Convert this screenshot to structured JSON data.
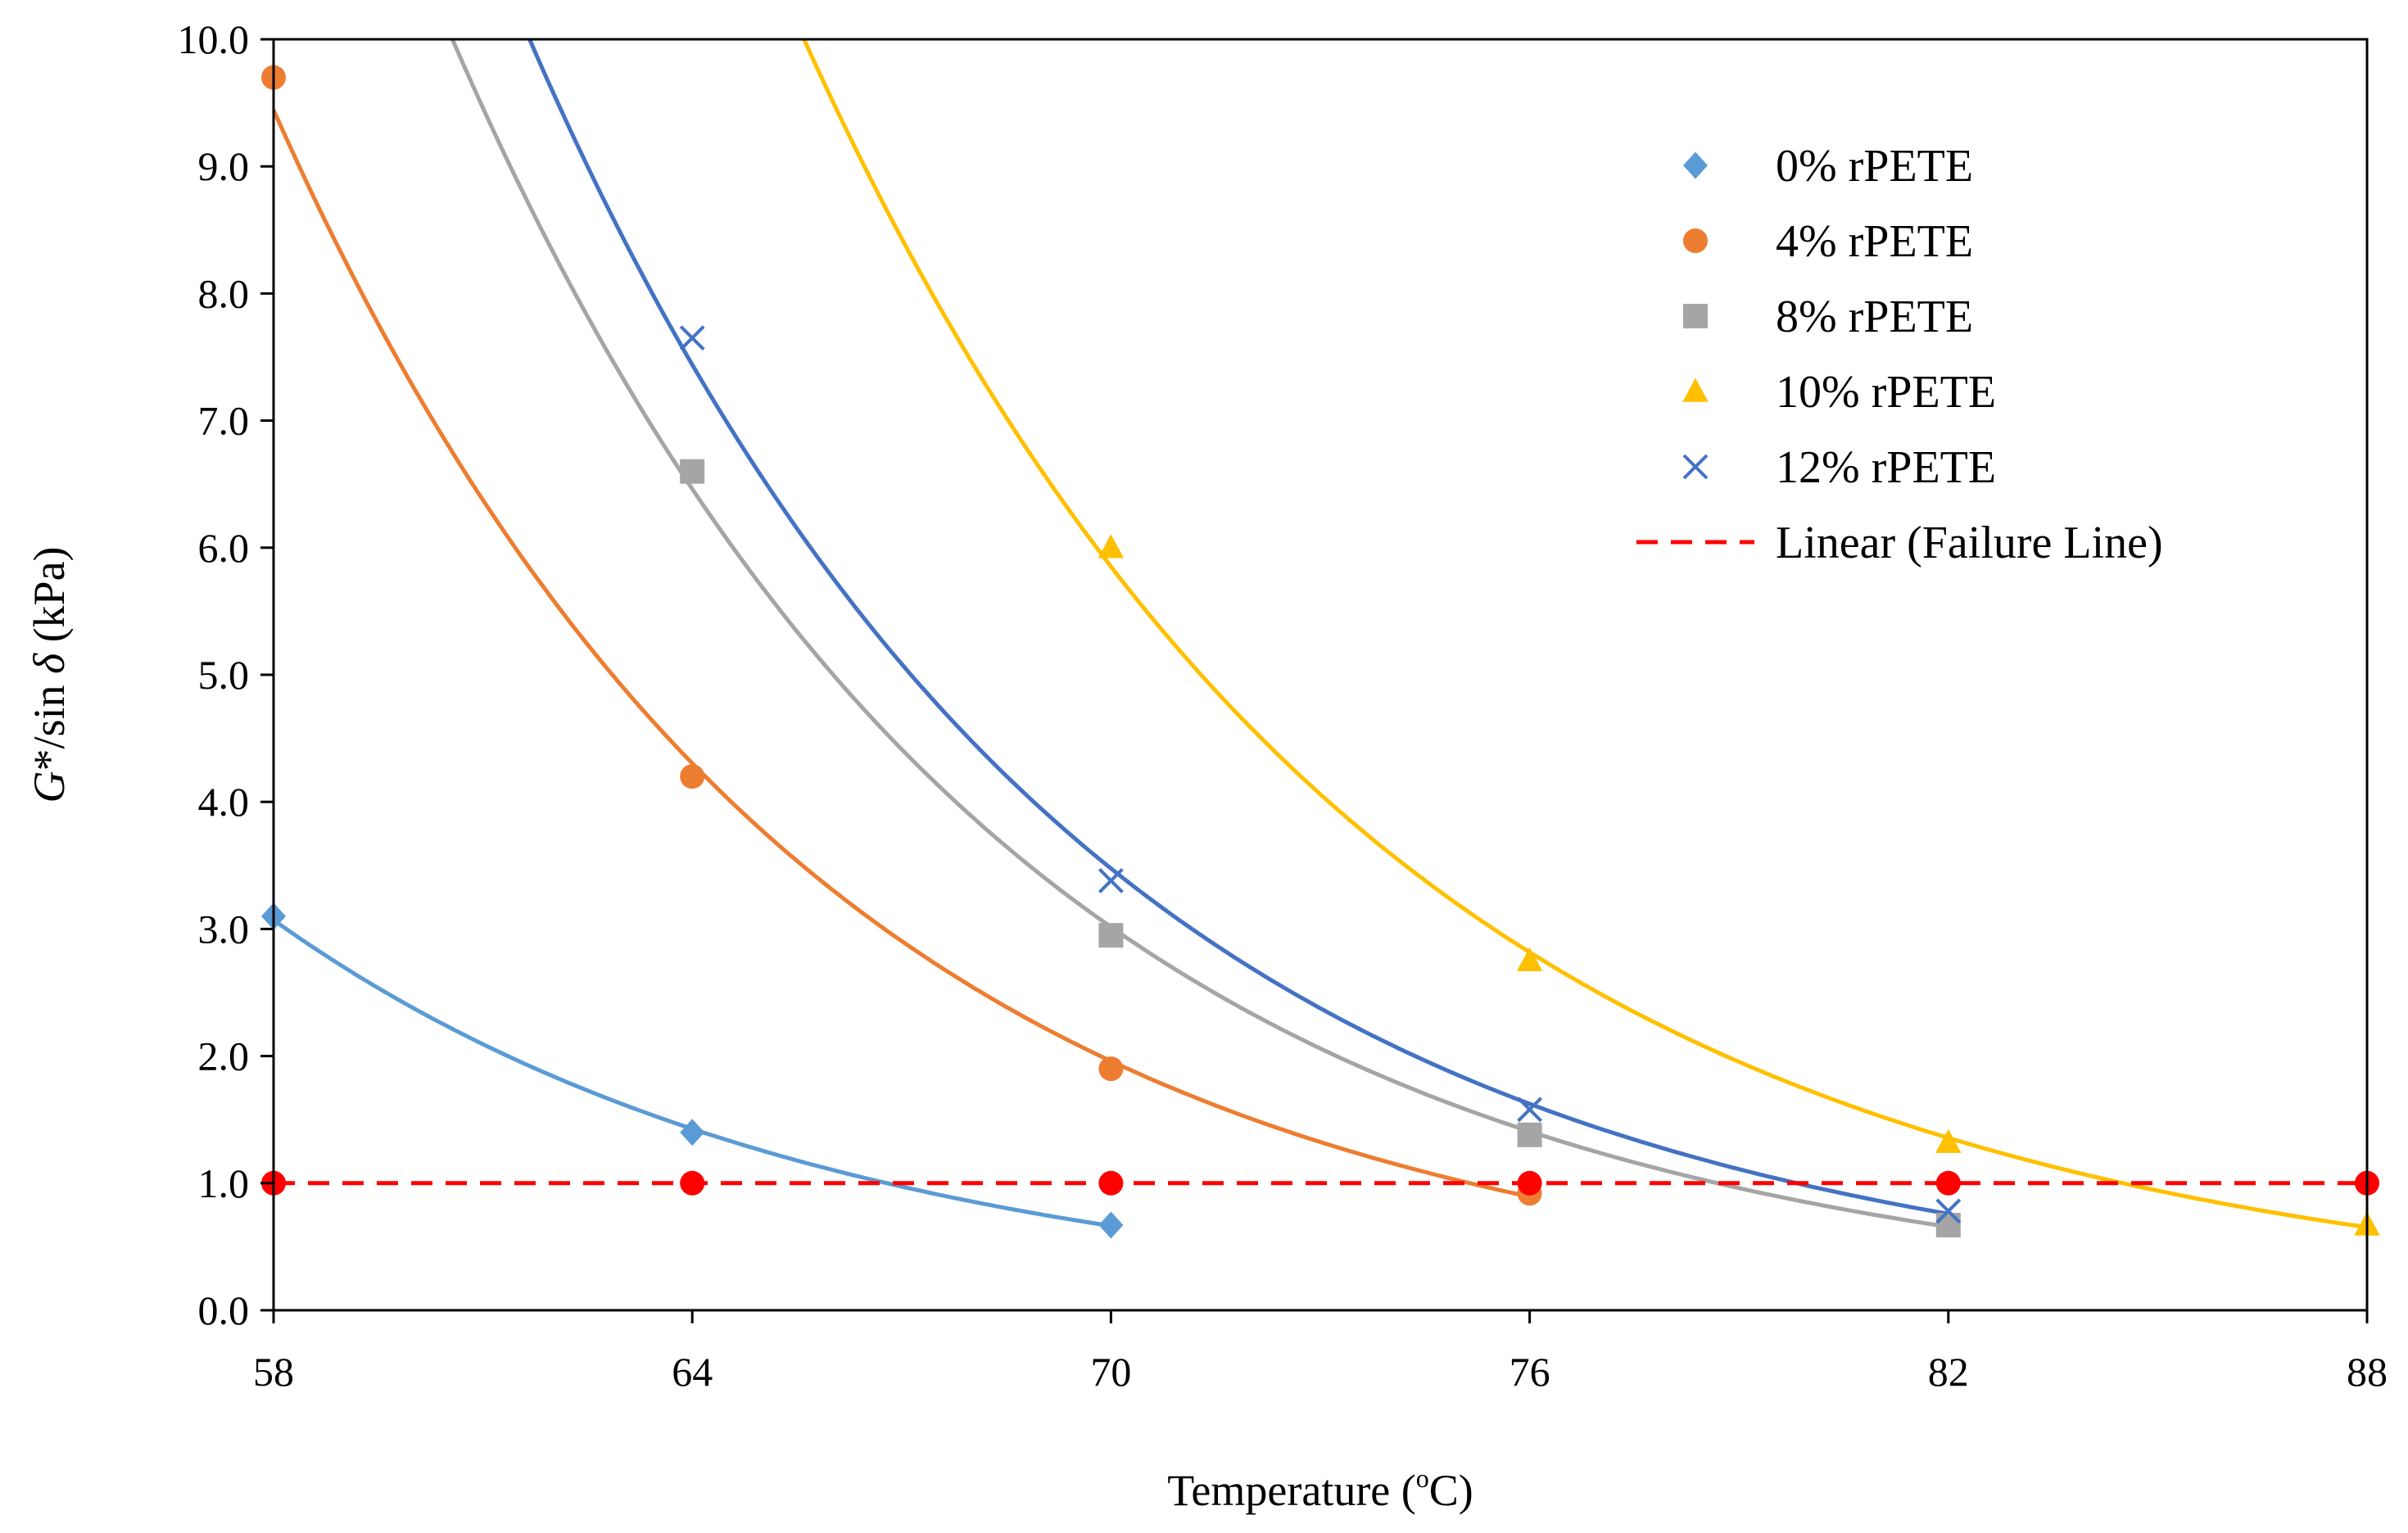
{
  "chart_data": {
    "type": "scatter",
    "title": "",
    "xlabel": "Temperature (",
    "xlabel_sup": "o",
    "xlabel_suffix": "C)",
    "ylabel_g": "G",
    "ylabel_mid": "*/sin ",
    "ylabel_delta": "δ",
    "ylabel_unit": " (kPa)",
    "xlim": [
      58,
      88
    ],
    "ylim": [
      0,
      10
    ],
    "x_ticks": [
      58,
      64,
      70,
      76,
      82,
      88
    ],
    "x_tick_labels": [
      "58",
      "64",
      "70",
      "76",
      "82",
      "88"
    ],
    "y_ticks": [
      0,
      1,
      2,
      3,
      4,
      5,
      6,
      7,
      8,
      9,
      10
    ],
    "y_tick_labels": [
      "0.0",
      "1.0",
      "2.0",
      "3.0",
      "4.0",
      "5.0",
      "6.0",
      "7.0",
      "8.0",
      "9.0",
      "10.0"
    ],
    "grid": false,
    "legend_position": "top-right",
    "series": [
      {
        "name": "0% rPETE",
        "marker": "diamond",
        "color": "#5B9BD5",
        "x": [
          58,
          64,
          70
        ],
        "y": [
          3.1,
          1.4,
          0.67
        ],
        "trendline": "exponential"
      },
      {
        "name": "4% rPETE",
        "marker": "circle",
        "color": "#ED7D31",
        "x": [
          58,
          64,
          70,
          76
        ],
        "y": [
          9.7,
          4.2,
          1.9,
          0.92
        ],
        "trendline": "exponential"
      },
      {
        "name": "8% rPETE",
        "marker": "square",
        "color": "#A5A5A5",
        "x": [
          64,
          70,
          76,
          82
        ],
        "y": [
          6.6,
          2.95,
          1.38,
          0.67
        ],
        "trendline": "exponential"
      },
      {
        "name": "10% rPETE",
        "marker": "triangle",
        "color": "#FFC000",
        "x": [
          70,
          76,
          82,
          88
        ],
        "y": [
          6.0,
          2.75,
          1.32,
          0.67
        ],
        "trendline": "exponential"
      },
      {
        "name": "12% rPETE",
        "marker": "x",
        "color": "#4472C4",
        "x": [
          64,
          70,
          76,
          82
        ],
        "y": [
          7.65,
          3.38,
          1.58,
          0.78
        ],
        "trendline": "exponential"
      },
      {
        "name": "Failure Line",
        "marker": "circle",
        "color": "#FF0000",
        "x": [
          58,
          64,
          70,
          76,
          82,
          88
        ],
        "y": [
          1.0,
          1.0,
          1.0,
          1.0,
          1.0,
          1.0
        ],
        "trendline": "linear",
        "line_style": "dashed"
      }
    ],
    "legend_entries": [
      {
        "label": "0% rPETE",
        "marker": "diamond",
        "color": "#5B9BD5"
      },
      {
        "label": "4% rPETE",
        "marker": "circle",
        "color": "#ED7D31"
      },
      {
        "label": "8% rPETE",
        "marker": "square",
        "color": "#A5A5A5"
      },
      {
        "label": "10% rPETE",
        "marker": "triangle",
        "color": "#FFC000"
      },
      {
        "label": "12% rPETE",
        "marker": "x",
        "color": "#4472C4"
      },
      {
        "label": "Linear (Failure Line)",
        "marker": "dashed-line",
        "color": "#FF0000"
      }
    ]
  }
}
